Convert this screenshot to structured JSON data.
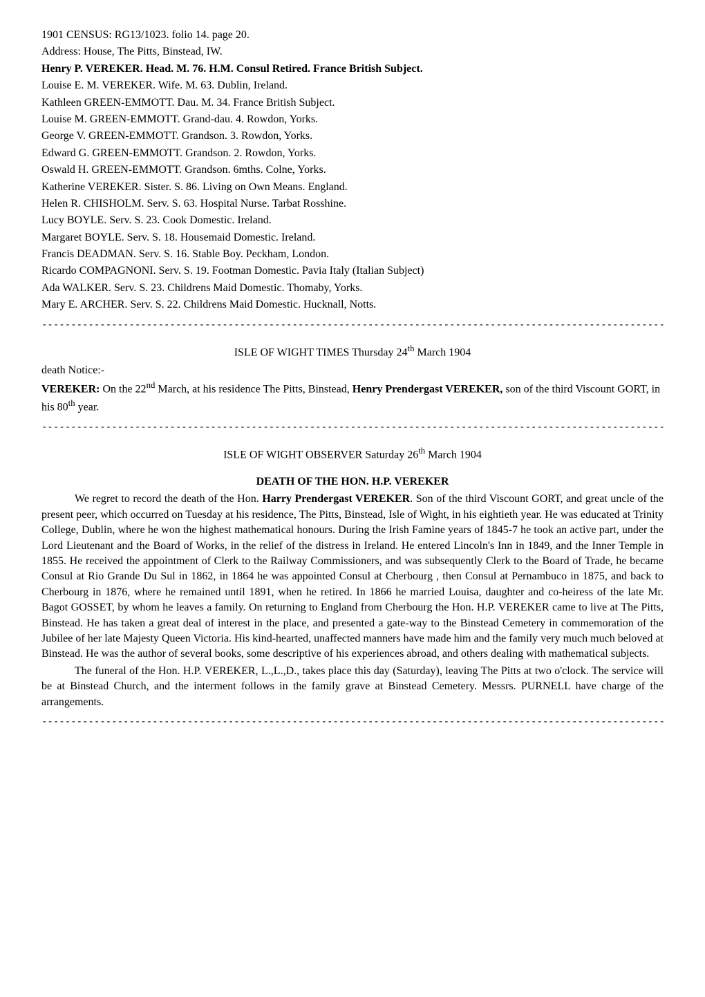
{
  "census": {
    "line1": "1901 CENSUS: RG13/1023. folio 14. page 20.",
    "line2": "Address: House, The Pitts, Binstead, IW."
  },
  "header_bold": "Henry P. VEREKER. Head. M. 76. H.M. Consul Retired. France British Subject.",
  "persons": [
    "Louise E. M. VEREKER. Wife. M. 63. Dublin, Ireland.",
    "Kathleen GREEN-EMMOTT. Dau. M. 34. France British Subject.",
    "Louise M.  GREEN-EMMOTT. Grand-dau. 4. Rowdon, Yorks.",
    "George V. GREEN-EMMOTT. Grandson. 3. Rowdon, Yorks.",
    "Edward G. GREEN-EMMOTT. Grandson. 2. Rowdon, Yorks.",
    "Oswald H. GREEN-EMMOTT. Grandson. 6mths. Colne, Yorks.",
    "Katherine VEREKER. Sister. S. 86. Living on Own Means. England.",
    "Helen R. CHISHOLM. Serv. S. 63. Hospital Nurse. Tarbat Rosshine.",
    "Lucy BOYLE. Serv. S. 23. Cook Domestic. Ireland.",
    "Margaret BOYLE. Serv. S. 18. Housemaid Domestic. Ireland.",
    "Francis DEADMAN. Serv. S. 16. Stable Boy. Peckham, London.",
    "Ricardo COMPAGNONI. Serv. S. 19. Footman Domestic. Pavia Italy (Italian Subject)",
    "Ada WALKER. Serv. S. 23. Childrens Maid Domestic. Thomaby, Yorks.",
    "Mary E. ARCHER. Serv. S. 22. Childrens Maid Domestic. Hucknall, Notts."
  ],
  "divider1": "---------------------------------------------------------------------------------------------------------------------",
  "times_header_pre": "ISLE OF WIGHT TIMES Thursday 24",
  "times_header_sup": "th",
  "times_header_post": " March 1904",
  "death_notice_label": "death Notice:-",
  "vereker_bold1": "VEREKER:",
  "vereker_text1": " On the 22",
  "vereker_sup1": "nd",
  "vereker_text2": " March, at his residence The Pitts, Binstead, ",
  "vereker_bold2": "Henry Prendergast VEREKER,",
  "vereker_text3": " son of the third Viscount GORT, in his 80",
  "vereker_sup2": "th",
  "vereker_text4": " year.",
  "divider2": "----------------------------------------------------------------------------------------------------------------------",
  "observer_header_pre": "ISLE OF WIGHT OBSERVER Saturday 26",
  "observer_header_sup": "th",
  "observer_header_post": " March 1904",
  "death_title": "DEATH OF THE HON. H.P. VEREKER",
  "body1_pre": "We regret to record the death of the Hon. ",
  "body1_bold": "Harry Prendergast VEREKER",
  "body1_post": ". Son of the third Viscount GORT, and great uncle of the present peer, which occurred on Tuesday at his residence, The Pitts, Binstead, Isle of Wight, in his eightieth year. He was educated at Trinity College, Dublin, where he won the highest mathematical honours. During the Irish Famine years of 1845-7 he took an active part, under the Lord Lieutenant and the Board of Works, in the relief of the distress in Ireland. He entered Lincoln's Inn in 1849, and the Inner Temple in 1855. He received the appointment of Clerk to the Railway Commissioners, and was subsequently Clerk to the Board of Trade, he became Consul at Rio Grande Du Sul in 1862, in 1864 he was appointed Consul at Cherbourg , then Consul at Pernambuco in 1875, and back to Cherbourg in 1876, where he remained until 1891, when he retired. In 1866 he married Louisa, daughter and co-heiress of the late Mr. Bagot GOSSET, by whom he leaves a family. On returning to England from Cherbourg the Hon. H.P. VEREKER came to live at The Pitts, Binstead. He has taken a great deal of interest in the place, and presented a gate-way to the Binstead Cemetery in commemoration of the Jubilee of her late Majesty Queen Victoria. His kind-hearted, unaffected manners have made him and the family very much much beloved at Binstead. He was the author of several books, some descriptive of his experiences abroad, and others dealing with mathematical subjects.",
  "body2": "The funeral of the Hon. H.P. VEREKER, L.,L.,D., takes place this day (Saturday), leaving The Pitts at two o'clock. The service will be at Binstead Church, and the interment follows in the family grave at Binstead Cemetery. Messrs. PURNELL have charge of the arrangements.",
  "divider3": "--------------------------------------------------------------------------------------------------------------------"
}
